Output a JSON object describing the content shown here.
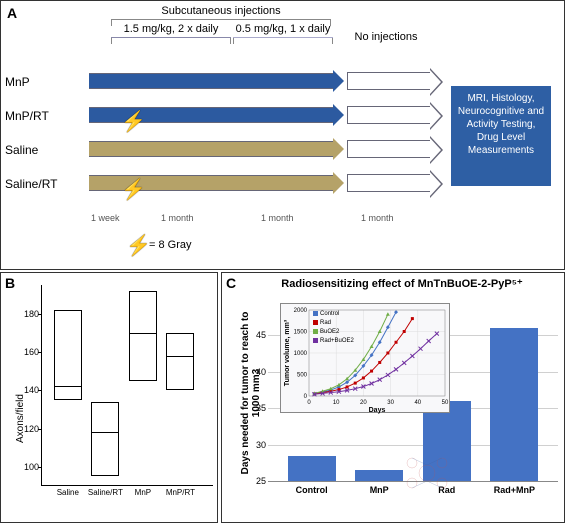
{
  "panelA": {
    "label": "A",
    "header": "Subcutaneous injections",
    "phase1": "1.5 mg/kg, 2 x daily",
    "phase2": "0.5 mg/kg, 1 x daily",
    "phase3": "No injections",
    "rows": [
      "MnP",
      "MnP/RT",
      "Saline",
      "Saline/RT"
    ],
    "periods": [
      "1 week",
      "1 month",
      "1 month",
      "1 month"
    ],
    "boltLegend": "= 8 Gray",
    "endbox": "MRI, Histology, Neurocognitive and Activity Testing, Drug Level Measurements",
    "colors": {
      "blue": "#2c5aa0",
      "tan": "#b5a268",
      "endbox": "#2e5fa4"
    }
  },
  "panelB": {
    "label": "B",
    "ylabel": "Axons/field",
    "ylim": [
      90,
      195
    ],
    "yticks": [
      100,
      120,
      140,
      160,
      180
    ],
    "categories": [
      "Saline",
      "Saline/RT",
      "MnP",
      "MnP/RT"
    ],
    "boxes": [
      {
        "low": 135,
        "med": 142,
        "high": 182
      },
      {
        "low": 95,
        "med": 118,
        "high": 134
      },
      {
        "low": 145,
        "med": 170,
        "high": 192
      },
      {
        "low": 140,
        "med": 158,
        "high": 170
      }
    ],
    "box_border": "#000000",
    "background": "#ffffff"
  },
  "panelC": {
    "label": "C",
    "title": "Radiosensitizing effect of MnTnBuOE-2-PyP⁵⁺",
    "ylabel": "Days needed for tumor to reach to 1000 mm3",
    "ylim": [
      25,
      50
    ],
    "yticks": [
      25,
      30,
      35,
      40,
      45
    ],
    "categories": [
      "Control",
      "MnP",
      "Rad",
      "Rad+MnP"
    ],
    "values": [
      28.5,
      26.5,
      36,
      46
    ],
    "bar_color": "#4472c4",
    "grid_color": "#d0d0d0",
    "background": "#ffffff",
    "inset": {
      "ylabel": "Tumor volume, mm³",
      "xlabel": "Days",
      "xlim": [
        0,
        50
      ],
      "xticks": [
        0,
        10,
        20,
        30,
        40,
        50
      ],
      "ylim": [
        0,
        2000
      ],
      "yticks": [
        0,
        500,
        1000,
        1500,
        2000
      ],
      "series": [
        {
          "name": "Control",
          "color": "#4472c4",
          "marker": "diamond",
          "x": [
            2,
            5,
            8,
            11,
            14,
            17,
            20,
            23,
            26,
            29,
            32
          ],
          "y": [
            50,
            90,
            140,
            210,
            320,
            480,
            700,
            950,
            1250,
            1600,
            1950
          ]
        },
        {
          "name": "Rad",
          "color": "#c00000",
          "marker": "square",
          "x": [
            2,
            5,
            8,
            11,
            14,
            17,
            20,
            23,
            26,
            29,
            32,
            35,
            38
          ],
          "y": [
            50,
            80,
            110,
            150,
            210,
            300,
            420,
            580,
            780,
            1000,
            1250,
            1500,
            1800
          ]
        },
        {
          "name": "BuOE2",
          "color": "#70ad47",
          "marker": "triangle",
          "x": [
            2,
            5,
            8,
            11,
            14,
            17,
            20,
            23,
            26,
            29
          ],
          "y": [
            60,
            110,
            170,
            260,
            400,
            600,
            850,
            1150,
            1500,
            1900
          ]
        },
        {
          "name": "Rad+BuOE2",
          "color": "#7030a0",
          "marker": "x",
          "x": [
            2,
            5,
            8,
            11,
            14,
            17,
            20,
            23,
            26,
            29,
            32,
            35,
            38,
            41,
            44,
            47
          ],
          "y": [
            40,
            60,
            80,
            100,
            130,
            170,
            220,
            290,
            380,
            490,
            620,
            770,
            930,
            1100,
            1280,
            1450
          ]
        }
      ]
    }
  }
}
